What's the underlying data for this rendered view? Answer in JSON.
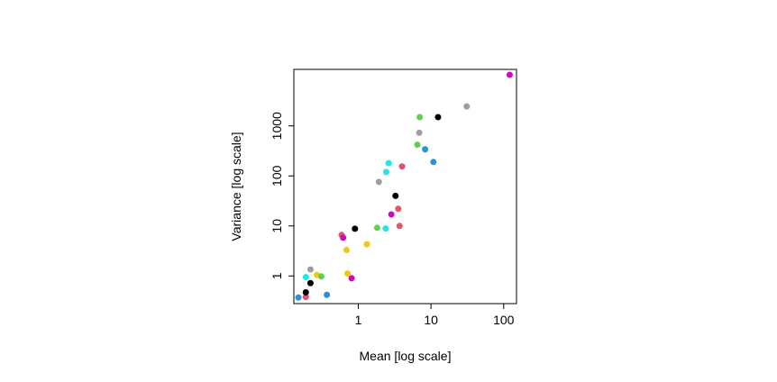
{
  "chart_data": {
    "type": "scatter",
    "title": "",
    "xlabel": "Mean [log scale]",
    "ylabel": "Variance [log scale]",
    "x_scale": "log",
    "y_scale": "log",
    "xlim": [
      0.13,
      150
    ],
    "ylim": [
      0.28,
      13500
    ],
    "grid": false,
    "legend": "none",
    "x_ticks": [
      {
        "value": 1,
        "label": "1"
      },
      {
        "value": 10,
        "label": "10"
      },
      {
        "value": 100,
        "label": "100"
      }
    ],
    "y_ticks": [
      {
        "value": 1,
        "label": "1"
      },
      {
        "value": 10,
        "label": "10"
      },
      {
        "value": 100,
        "label": "100"
      },
      {
        "value": 1000,
        "label": "1000"
      }
    ],
    "points": [
      {
        "x": 0.15,
        "y": 0.37,
        "color": "#2A93D5"
      },
      {
        "x": 0.19,
        "y": 0.38,
        "color": "#DF536B"
      },
      {
        "x": 0.19,
        "y": 0.47,
        "color": "#000000"
      },
      {
        "x": 0.19,
        "y": 0.95,
        "color": "#28E2E5"
      },
      {
        "x": 0.22,
        "y": 0.72,
        "color": "#000000"
      },
      {
        "x": 0.22,
        "y": 1.35,
        "color": "#9E9E9E"
      },
      {
        "x": 0.27,
        "y": 1.05,
        "color": "#F5C710"
      },
      {
        "x": 0.31,
        "y": 0.98,
        "color": "#61D04F"
      },
      {
        "x": 0.37,
        "y": 0.42,
        "color": "#2A93D5"
      },
      {
        "x": 0.59,
        "y": 6.6,
        "color": "#DF536B"
      },
      {
        "x": 0.62,
        "y": 5.8,
        "color": "#CD0BBC"
      },
      {
        "x": 0.69,
        "y": 3.3,
        "color": "#F5C710"
      },
      {
        "x": 0.71,
        "y": 1.12,
        "color": "#F5C710"
      },
      {
        "x": 0.81,
        "y": 0.9,
        "color": "#CD0BBC"
      },
      {
        "x": 0.9,
        "y": 8.8,
        "color": "#000000"
      },
      {
        "x": 1.31,
        "y": 4.3,
        "color": "#F5C710"
      },
      {
        "x": 1.82,
        "y": 9.2,
        "color": "#61D04F"
      },
      {
        "x": 1.92,
        "y": 76,
        "color": "#9E9E9E"
      },
      {
        "x": 2.38,
        "y": 8.9,
        "color": "#28E2E5"
      },
      {
        "x": 2.42,
        "y": 120,
        "color": "#28E2E5"
      },
      {
        "x": 2.62,
        "y": 180,
        "color": "#28E2E5"
      },
      {
        "x": 2.85,
        "y": 17,
        "color": "#CD0BBC"
      },
      {
        "x": 3.25,
        "y": 40,
        "color": "#000000"
      },
      {
        "x": 3.55,
        "y": 22,
        "color": "#DF536B"
      },
      {
        "x": 3.7,
        "y": 10,
        "color": "#DF536B"
      },
      {
        "x": 4.0,
        "y": 155,
        "color": "#DF536B"
      },
      {
        "x": 6.5,
        "y": 420,
        "color": "#61D04F"
      },
      {
        "x": 6.9,
        "y": 730,
        "color": "#9E9E9E"
      },
      {
        "x": 7.0,
        "y": 1500,
        "color": "#61D04F"
      },
      {
        "x": 8.3,
        "y": 340,
        "color": "#2A93D5"
      },
      {
        "x": 10.8,
        "y": 190,
        "color": "#2A93D5"
      },
      {
        "x": 12.5,
        "y": 1500,
        "color": "#000000"
      },
      {
        "x": 31,
        "y": 2450,
        "color": "#9E9E9E"
      },
      {
        "x": 121,
        "y": 10500,
        "color": "#CD0BBC"
      }
    ]
  }
}
